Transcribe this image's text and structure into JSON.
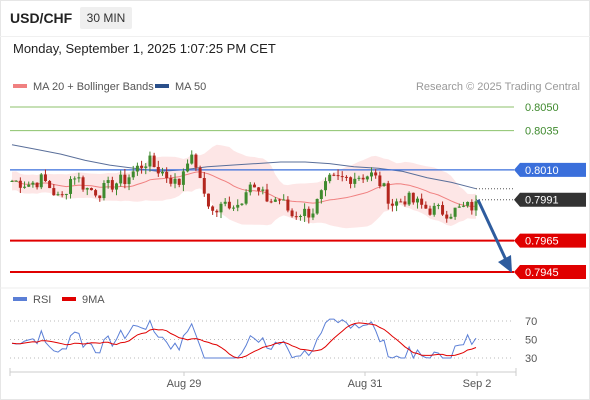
{
  "header": {
    "symbol": "USD/CHF",
    "interval": "30 MIN",
    "datetime": "Monday, September 1, 2025 1:07:25 PM CET"
  },
  "legend": {
    "items": [
      {
        "label": "MA 20 + Bollinger Bands",
        "color": "#f08080"
      },
      {
        "label": "MA 50",
        "color": "#2a4f8a"
      }
    ],
    "copyright": "Research © 2025 Trading Central"
  },
  "colors": {
    "up": "#3f8a2e",
    "down": "#b3261e",
    "target": "#e00000",
    "current": "#333333",
    "pivot": "#3a6fdb",
    "resistance": "#8cc26b",
    "arrow": "#2e5c9e",
    "bollinger_fill": "#fde2e2"
  },
  "chart_data": [
    {
      "type": "candlestick",
      "x_ticks": [
        "Aug 29",
        "Aug 31",
        "Sep 2"
      ],
      "ylim": [
        0.7938,
        0.8062
      ],
      "levels": [
        {
          "label": "0.8050",
          "value": 0.805,
          "kind": "resistance"
        },
        {
          "label": "0.8035",
          "value": 0.8035,
          "kind": "resistance"
        },
        {
          "label": "0.8010",
          "value": 0.801,
          "kind": "pivot"
        },
        {
          "label": "0.7991",
          "value": 0.7991,
          "kind": "current"
        },
        {
          "label": "0.7965",
          "value": 0.7965,
          "kind": "target"
        },
        {
          "label": "0.7945",
          "value": 0.7945,
          "kind": "target"
        }
      ],
      "ma50": [
        0.8026,
        0.8023,
        0.802,
        0.8016,
        0.8013,
        0.8011,
        0.8009,
        0.801,
        0.8012,
        0.8013,
        0.8014,
        0.8015,
        0.8015,
        0.8014,
        0.8012,
        0.8011,
        0.8009,
        0.8005,
        0.8002,
        0.7998
      ],
      "forecast_arrow": {
        "from": 0.7991,
        "to": 0.7945
      }
    },
    {
      "type": "line",
      "series": [
        {
          "name": "RSI",
          "color": "#5b7fd6"
        },
        {
          "name": "9MA",
          "color": "#e00000"
        }
      ],
      "ylim": [
        25,
        75
      ],
      "y_ticks": [
        70,
        50,
        30
      ]
    }
  ]
}
